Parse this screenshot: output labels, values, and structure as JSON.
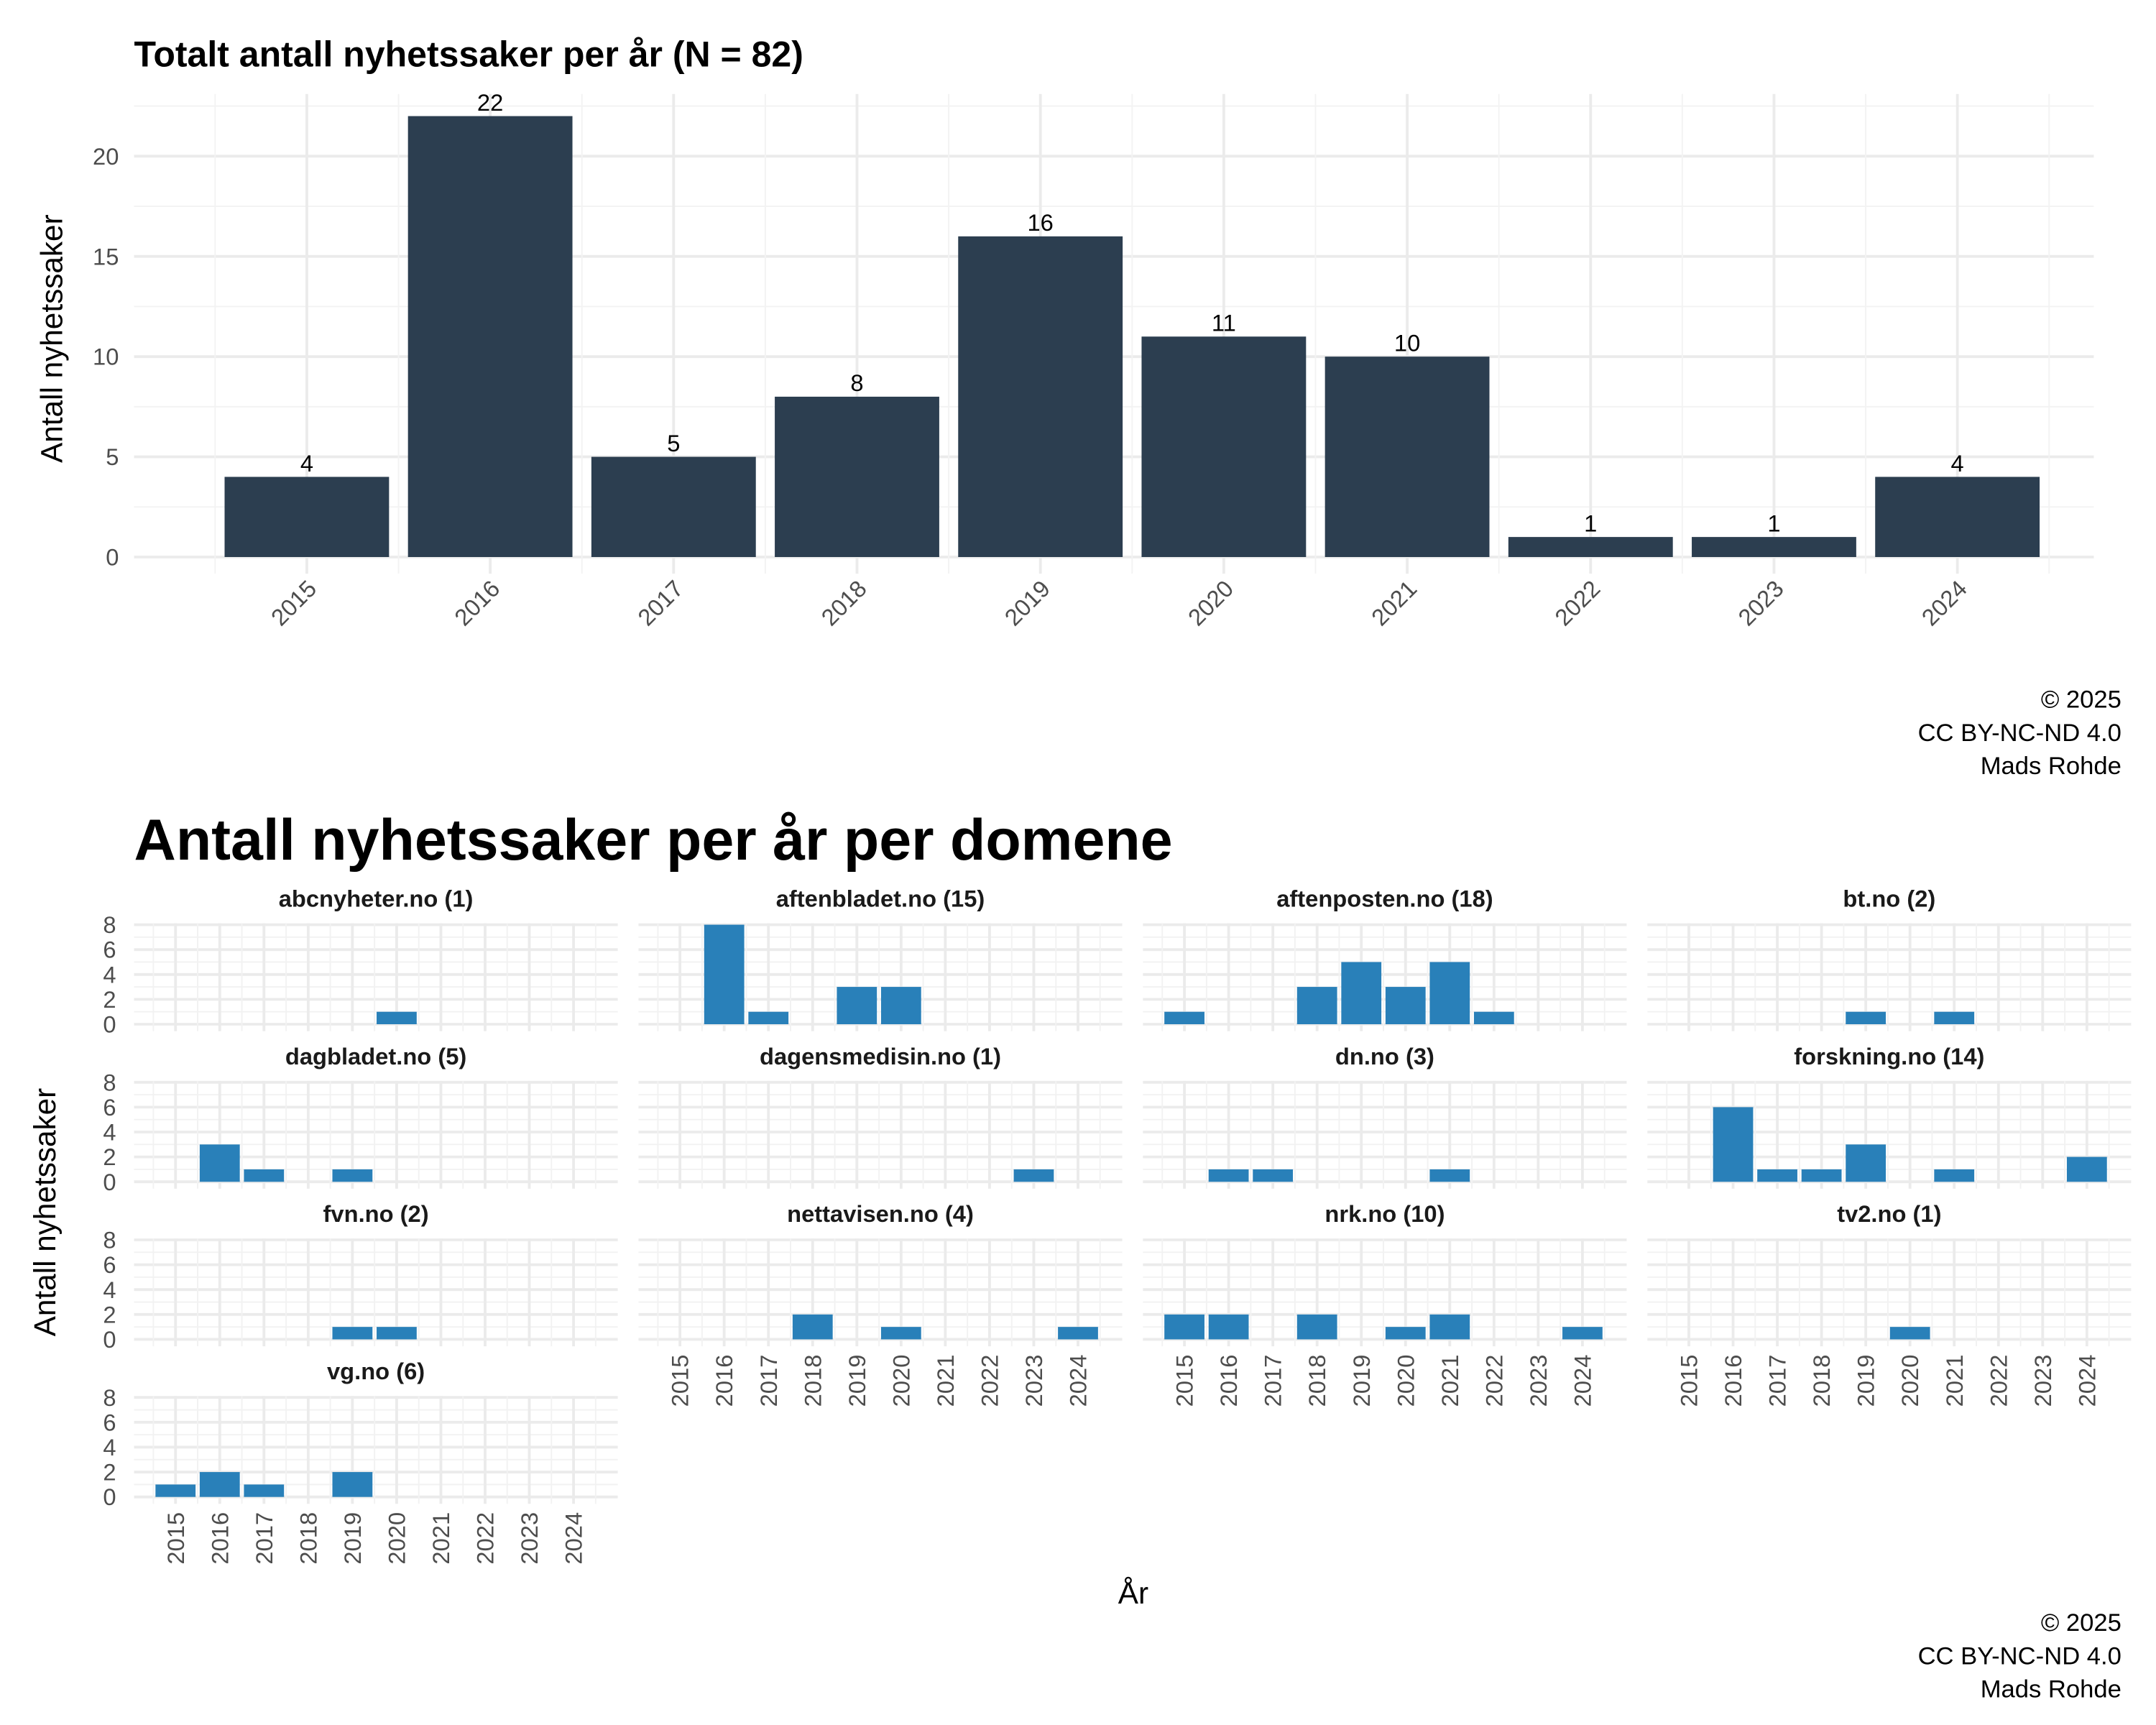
{
  "chart_data": [
    {
      "type": "bar",
      "title": "Totalt antall nyhetssaker per år (N = 82)",
      "xlabel": "",
      "ylabel": "Antall nyhetssaker",
      "categories": [
        "2015",
        "2016",
        "2017",
        "2018",
        "2019",
        "2020",
        "2021",
        "2022",
        "2023",
        "2024"
      ],
      "values": [
        4,
        22,
        5,
        8,
        16,
        11,
        10,
        1,
        1,
        4
      ],
      "data_labels": true,
      "ylim": [
        0,
        23
      ],
      "yticks": [
        0,
        5,
        10,
        15,
        20
      ],
      "grid": true,
      "bar_color": "#2c3e50",
      "caption": [
        "© 2025",
        "CC BY-NC-ND 4.0",
        "Mads Rohde"
      ]
    },
    {
      "type": "bar",
      "title": "Antall nyhetssaker per år per domene",
      "xlabel": "År",
      "ylabel": "Antall nyhetssaker",
      "categories": [
        "2015",
        "2016",
        "2017",
        "2018",
        "2019",
        "2020",
        "2021",
        "2022",
        "2023",
        "2024"
      ],
      "ylim": [
        0,
        8
      ],
      "yticks": [
        0,
        2,
        4,
        6,
        8
      ],
      "grid": true,
      "bar_color": "#2980b9",
      "facets": [
        {
          "name": "abcnyheter.no (1)",
          "values": [
            0,
            0,
            0,
            0,
            0,
            1,
            0,
            0,
            0,
            0
          ]
        },
        {
          "name": "aftenbladet.no (15)",
          "values": [
            0,
            8,
            1,
            0,
            3,
            3,
            0,
            0,
            0,
            0
          ]
        },
        {
          "name": "aftenposten.no (18)",
          "values": [
            1,
            0,
            0,
            3,
            5,
            3,
            5,
            1,
            0,
            0
          ]
        },
        {
          "name": "bt.no (2)",
          "values": [
            0,
            0,
            0,
            0,
            1,
            0,
            1,
            0,
            0,
            0
          ]
        },
        {
          "name": "dagbladet.no (5)",
          "values": [
            0,
            3,
            1,
            0,
            1,
            0,
            0,
            0,
            0,
            0
          ]
        },
        {
          "name": "dagensmedisin.no (1)",
          "values": [
            0,
            0,
            0,
            0,
            0,
            0,
            0,
            0,
            1,
            0
          ]
        },
        {
          "name": "dn.no (3)",
          "values": [
            0,
            1,
            1,
            0,
            0,
            0,
            1,
            0,
            0,
            0
          ]
        },
        {
          "name": "forskning.no (14)",
          "values": [
            0,
            6,
            1,
            1,
            3,
            0,
            1,
            0,
            0,
            2
          ]
        },
        {
          "name": "fvn.no (2)",
          "values": [
            0,
            0,
            0,
            0,
            1,
            1,
            0,
            0,
            0,
            0
          ]
        },
        {
          "name": "nettavisen.no (4)",
          "values": [
            0,
            0,
            0,
            2,
            0,
            1,
            0,
            0,
            0,
            1
          ]
        },
        {
          "name": "nrk.no (10)",
          "values": [
            2,
            2,
            0,
            2,
            0,
            1,
            2,
            0,
            0,
            1
          ]
        },
        {
          "name": "tv2.no (1)",
          "values": [
            0,
            0,
            0,
            0,
            0,
            1,
            0,
            0,
            0,
            0
          ]
        },
        {
          "name": "vg.no (6)",
          "values": [
            1,
            2,
            1,
            0,
            2,
            0,
            0,
            0,
            0,
            0
          ]
        }
      ],
      "caption": [
        "© 2025",
        "CC BY-NC-ND 4.0",
        "Mads Rohde"
      ]
    }
  ]
}
